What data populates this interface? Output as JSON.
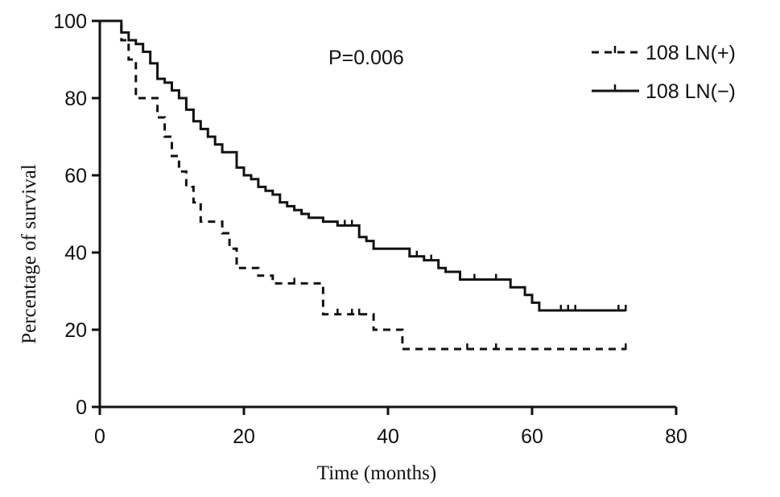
{
  "chart_data": {
    "type": "line",
    "step": true,
    "xlabel": "Time (months)",
    "ylabel": "Percentage of survival",
    "xlim": [
      0,
      80
    ],
    "ylim": [
      0,
      100
    ],
    "xticks": [
      0,
      20,
      40,
      60,
      80
    ],
    "yticks": [
      0,
      20,
      40,
      60,
      80,
      100
    ],
    "grid": false,
    "legend_position": "top-right",
    "annotation": "P=0.006",
    "series": [
      {
        "name": "108 LN(+)",
        "style": "dashed",
        "color": "#111111",
        "points": [
          [
            0,
            100
          ],
          [
            3,
            100
          ],
          [
            3,
            95
          ],
          [
            4,
            95
          ],
          [
            4,
            90
          ],
          [
            5,
            90
          ],
          [
            5,
            80
          ],
          [
            8,
            80
          ],
          [
            8,
            75
          ],
          [
            9,
            75
          ],
          [
            9,
            70
          ],
          [
            10,
            70
          ],
          [
            10,
            65
          ],
          [
            11,
            65
          ],
          [
            11,
            61
          ],
          [
            12,
            61
          ],
          [
            12,
            57
          ],
          [
            13,
            57
          ],
          [
            13,
            53
          ],
          [
            14,
            53
          ],
          [
            14,
            48
          ],
          [
            17,
            48
          ],
          [
            17,
            45
          ],
          [
            18,
            45
          ],
          [
            18,
            41
          ],
          [
            19,
            41
          ],
          [
            19,
            36
          ],
          [
            22,
            36
          ],
          [
            22,
            34
          ],
          [
            24,
            34
          ],
          [
            24,
            32
          ],
          [
            31,
            32
          ],
          [
            31,
            24
          ],
          [
            38,
            24
          ],
          [
            38,
            20
          ],
          [
            42,
            20
          ],
          [
            42,
            15
          ],
          [
            73,
            15
          ]
        ],
        "censored": [
          [
            27,
            32
          ],
          [
            33,
            24
          ],
          [
            35,
            24
          ],
          [
            36,
            24
          ],
          [
            51,
            15
          ],
          [
            55,
            15
          ],
          [
            73,
            15
          ]
        ]
      },
      {
        "name": "108 LN(−)",
        "style": "solid",
        "color": "#111111",
        "points": [
          [
            0,
            100
          ],
          [
            3,
            100
          ],
          [
            3,
            97
          ],
          [
            4,
            97
          ],
          [
            4,
            95
          ],
          [
            5,
            95
          ],
          [
            5,
            94
          ],
          [
            6,
            94
          ],
          [
            6,
            92
          ],
          [
            7,
            92
          ],
          [
            7,
            89
          ],
          [
            8,
            89
          ],
          [
            8,
            85
          ],
          [
            9,
            85
          ],
          [
            9,
            84
          ],
          [
            10,
            84
          ],
          [
            10,
            82
          ],
          [
            11,
            82
          ],
          [
            11,
            80
          ],
          [
            12,
            80
          ],
          [
            12,
            77
          ],
          [
            13,
            77
          ],
          [
            13,
            74
          ],
          [
            14,
            74
          ],
          [
            14,
            72
          ],
          [
            15,
            72
          ],
          [
            15,
            70
          ],
          [
            16,
            70
          ],
          [
            16,
            68
          ],
          [
            17,
            68
          ],
          [
            17,
            66
          ],
          [
            19,
            66
          ],
          [
            19,
            62
          ],
          [
            20,
            62
          ],
          [
            20,
            60
          ],
          [
            21,
            60
          ],
          [
            21,
            59
          ],
          [
            22,
            59
          ],
          [
            22,
            57
          ],
          [
            23,
            57
          ],
          [
            23,
            56
          ],
          [
            24,
            56
          ],
          [
            24,
            55
          ],
          [
            25,
            55
          ],
          [
            25,
            53
          ],
          [
            26,
            53
          ],
          [
            26,
            52
          ],
          [
            27,
            52
          ],
          [
            27,
            51
          ],
          [
            28,
            51
          ],
          [
            28,
            50
          ],
          [
            29,
            50
          ],
          [
            29,
            49
          ],
          [
            31,
            49
          ],
          [
            31,
            48
          ],
          [
            33,
            48
          ],
          [
            33,
            47
          ],
          [
            36,
            47
          ],
          [
            36,
            44
          ],
          [
            37,
            44
          ],
          [
            37,
            43
          ],
          [
            38,
            43
          ],
          [
            38,
            41
          ],
          [
            43,
            41
          ],
          [
            43,
            39
          ],
          [
            45,
            39
          ],
          [
            45,
            38
          ],
          [
            47,
            38
          ],
          [
            47,
            36
          ],
          [
            48,
            36
          ],
          [
            48,
            35
          ],
          [
            50,
            35
          ],
          [
            50,
            33
          ],
          [
            57,
            33
          ],
          [
            57,
            31
          ],
          [
            59,
            31
          ],
          [
            59,
            29
          ],
          [
            60,
            29
          ],
          [
            60,
            27
          ],
          [
            61,
            27
          ],
          [
            61,
            25
          ],
          [
            73,
            25
          ]
        ],
        "censored": [
          [
            34,
            47
          ],
          [
            35,
            47
          ],
          [
            44,
            39
          ],
          [
            46,
            38
          ],
          [
            52,
            33
          ],
          [
            55,
            33
          ],
          [
            64,
            25
          ],
          [
            65,
            25
          ],
          [
            66,
            25
          ],
          [
            72,
            25
          ],
          [
            73,
            25
          ]
        ]
      }
    ]
  }
}
